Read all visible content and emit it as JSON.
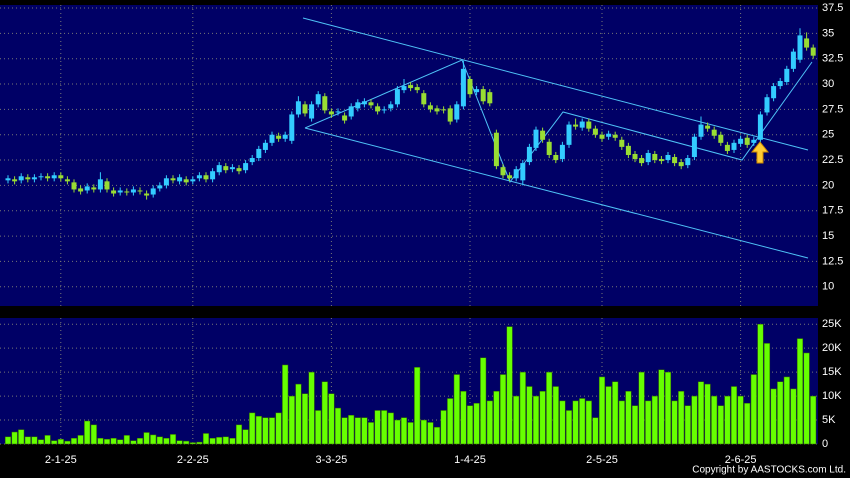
{
  "chart_data": [
    {
      "type": "candlestick",
      "categories": [
        null,
        null,
        null,
        null,
        null,
        null,
        null,
        null,
        "2-1-25",
        null,
        null,
        null,
        null,
        null,
        null,
        null,
        null,
        null,
        null,
        null,
        null,
        null,
        null,
        null,
        null,
        null,
        null,
        null,
        "2-2-25",
        null,
        null,
        null,
        null,
        null,
        null,
        null,
        null,
        null,
        null,
        null,
        null,
        null,
        null,
        null,
        null,
        null,
        null,
        null,
        null,
        "3-3-25",
        null,
        null,
        null,
        null,
        null,
        null,
        null,
        null,
        null,
        null,
        null,
        null,
        null,
        null,
        null,
        null,
        null,
        null,
        null,
        null,
        "1-4-25",
        null,
        null,
        null,
        null,
        null,
        null,
        null,
        null,
        null,
        null,
        null,
        null,
        null,
        null,
        null,
        null,
        null,
        null,
        null,
        "2-5-25",
        null,
        null,
        null,
        null,
        null,
        null,
        null,
        null,
        null,
        null,
        null,
        null,
        null,
        null,
        null,
        null,
        null,
        null,
        null,
        null,
        "2-6-25",
        null,
        null,
        null,
        null,
        null,
        null,
        null,
        null,
        null,
        null,
        null
      ],
      "open": [
        20.5,
        20.6,
        20.5,
        20.8,
        20.6,
        20.8,
        20.9,
        20.7,
        21.0,
        20.6,
        20.3,
        19.7,
        19.5,
        19.8,
        19.6,
        20.4,
        19.5,
        19.3,
        19.4,
        19.3,
        19.5,
        19.2,
        19.1,
        19.7,
        20.0,
        20.7,
        20.4,
        20.6,
        20.4,
        20.7,
        21.0,
        20.6,
        21.3,
        21.9,
        21.6,
        21.7,
        21.5,
        22.3,
        22.7,
        23.5,
        24.2,
        24.9,
        24.6,
        24.4,
        27.0,
        28.0,
        26.6,
        28.0,
        28.8,
        27.3,
        27.2,
        26.9,
        26.8,
        27.6,
        28.0,
        28.2,
        27.8,
        27.4,
        27.6,
        28.0,
        29.4,
        29.9,
        29.7,
        29.1,
        27.9,
        27.6,
        27.5,
        27.6,
        26.5,
        27.8,
        30.5,
        29.2,
        29.5,
        29.2,
        25.2,
        21.8,
        21.0,
        20.7,
        20.5,
        22.3,
        23.7,
        25.4,
        24.3,
        23.0,
        22.6,
        24.0,
        26.0,
        25.7,
        26.3,
        25.6,
        25.0,
        24.8,
        25.0,
        24.5,
        23.9,
        23.1,
        22.7,
        22.3,
        23.1,
        22.6,
        22.5,
        22.8,
        22.3,
        22.0,
        22.8,
        24.8,
        25.9,
        25.5,
        25.0,
        24.0,
        23.5,
        24.1,
        24.7,
        24.2,
        24.5,
        27.2,
        28.6,
        29.8,
        30.2,
        31.5,
        32.4,
        34.5,
        33.6
      ],
      "high": [
        21.0,
        20.9,
        21.2,
        21.1,
        21.1,
        21.2,
        21.2,
        21.3,
        21.3,
        20.9,
        20.6,
        20.0,
        20.2,
        20.1,
        21.3,
        20.7,
        19.8,
        19.8,
        19.7,
        19.9,
        19.8,
        19.5,
        20.0,
        20.3,
        21.0,
        21.0,
        21.1,
        20.9,
        20.9,
        21.3,
        21.3,
        21.7,
        22.3,
        22.2,
        22.1,
        22.0,
        22.5,
        23.0,
        23.9,
        24.5,
        25.3,
        25.2,
        25.3,
        27.3,
        28.8,
        28.3,
        28.3,
        29.3,
        29.1,
        27.6,
        27.6,
        27.2,
        28.1,
        28.5,
        28.6,
        28.5,
        28.1,
        27.8,
        28.3,
        29.8,
        30.5,
        30.2,
        30.0,
        29.4,
        28.2,
        27.9,
        27.8,
        27.9,
        28.3,
        32.3,
        30.8,
        29.8,
        29.8,
        29.5,
        25.5,
        22.1,
        21.3,
        21.9,
        22.5,
        24.1,
        25.8,
        25.7,
        24.6,
        23.3,
        24.3,
        26.3,
        26.6,
        26.6,
        26.6,
        25.9,
        25.3,
        25.4,
        25.3,
        24.8,
        24.2,
        23.4,
        23.0,
        23.5,
        23.4,
        22.9,
        23.3,
        23.1,
        22.6,
        23.0,
        25.1,
        26.8,
        26.2,
        25.8,
        25.3,
        24.3,
        24.5,
        24.9,
        25.0,
        24.8,
        27.3,
        29.0,
        30.1,
        30.6,
        31.8,
        33.5,
        35.5,
        35.1,
        33.9
      ],
      "low": [
        20.2,
        20.1,
        20.2,
        20.3,
        20.3,
        20.5,
        20.4,
        20.4,
        20.4,
        20.1,
        19.3,
        19.1,
        19.2,
        19.3,
        19.3,
        19.3,
        18.9,
        19.0,
        19.0,
        19.0,
        19.1,
        18.6,
        18.8,
        19.4,
        19.7,
        20.2,
        20.1,
        20.0,
        20.1,
        20.4,
        20.3,
        20.3,
        21.0,
        21.2,
        21.3,
        21.1,
        21.2,
        22.0,
        22.4,
        23.2,
        23.9,
        24.3,
        24.3,
        24.1,
        26.7,
        26.8,
        26.3,
        27.7,
        27.1,
        26.7,
        26.9,
        26.1,
        26.5,
        27.3,
        27.7,
        27.6,
        27.0,
        27.1,
        27.3,
        27.7,
        29.1,
        29.3,
        29.1,
        27.7,
        27.2,
        27.0,
        27.1,
        26.0,
        26.2,
        27.5,
        28.7,
        28.9,
        28.0,
        27.8,
        21.6,
        20.7,
        20.4,
        20.4,
        20.0,
        22.0,
        23.4,
        24.2,
        22.7,
        22.2,
        22.3,
        23.7,
        25.5,
        25.4,
        25.3,
        24.7,
        24.3,
        24.5,
        24.4,
        23.5,
        22.7,
        22.3,
        21.9,
        22.0,
        22.2,
        22.1,
        22.2,
        21.9,
        21.6,
        21.7,
        22.5,
        24.5,
        25.3,
        24.6,
        23.9,
        23.1,
        23.2,
        23.8,
        23.7,
        23.9,
        24.2,
        26.9,
        28.3,
        29.5,
        29.9,
        31.2,
        32.1,
        33.3,
        32.5
      ],
      "close": [
        20.7,
        20.4,
        20.9,
        20.6,
        20.8,
        20.9,
        20.7,
        21.0,
        20.7,
        20.4,
        19.6,
        19.4,
        19.9,
        19.6,
        20.6,
        19.6,
        19.2,
        19.5,
        19.3,
        19.6,
        19.4,
        19.0,
        19.7,
        20.0,
        20.7,
        20.5,
        20.8,
        20.3,
        20.6,
        21.0,
        20.6,
        21.4,
        22.0,
        21.5,
        21.8,
        21.4,
        22.2,
        22.7,
        23.6,
        24.2,
        25.0,
        24.6,
        25.0,
        27.0,
        28.3,
        27.1,
        28.0,
        29.0,
        27.4,
        27.0,
        27.3,
        26.4,
        27.8,
        28.2,
        28.3,
        27.9,
        27.3,
        27.5,
        28.0,
        29.5,
        29.8,
        29.6,
        29.4,
        28.0,
        27.5,
        27.3,
        27.4,
        26.3,
        28.0,
        31.5,
        29.0,
        29.5,
        28.3,
        28.1,
        21.9,
        21.0,
        20.7,
        21.6,
        22.2,
        23.8,
        25.5,
        24.5,
        23.0,
        22.5,
        24.0,
        26.0,
        25.8,
        26.3,
        25.6,
        25.0,
        24.6,
        25.1,
        24.7,
        23.8,
        23.0,
        22.6,
        22.2,
        23.2,
        22.5,
        22.4,
        23.0,
        22.2,
        21.9,
        22.7,
        24.8,
        26.0,
        25.6,
        24.9,
        24.2,
        23.4,
        24.2,
        24.6,
        24.0,
        24.5,
        27.0,
        28.7,
        29.8,
        30.3,
        31.5,
        33.2,
        34.8,
        33.6,
        32.8
      ],
      "up_color": "#33ccff",
      "down_color": "#99dd33",
      "ylim": [
        8.1,
        37.8
      ],
      "yticks": [
        10,
        12.5,
        15,
        17.5,
        20,
        22.5,
        25,
        27.5,
        30,
        32.5,
        35,
        37.5
      ],
      "grid": true
    },
    {
      "type": "bar",
      "values": [
        1500,
        2500,
        3000,
        1500,
        1500,
        900,
        1800,
        700,
        1000,
        600,
        1200,
        1800,
        4800,
        4000,
        1200,
        1000,
        1200,
        900,
        1800,
        700,
        1200,
        2400,
        1900,
        1500,
        1200,
        2000,
        700,
        600,
        300,
        400,
        2200,
        1200,
        1400,
        1500,
        1200,
        4000,
        3000,
        6500,
        5800,
        5500,
        5500,
        6500,
        16500,
        10000,
        12500,
        10500,
        15000,
        7000,
        13000,
        10500,
        7500,
        5500,
        6000,
        5500,
        5500,
        4500,
        7000,
        7000,
        6500,
        5000,
        5500,
        4500,
        16000,
        5000,
        4500,
        3500,
        7000,
        9500,
        14500,
        11000,
        8000,
        8500,
        18000,
        9000,
        11000,
        14500,
        24500,
        10000,
        15000,
        12000,
        10000,
        11000,
        15000,
        12000,
        9000,
        7000,
        9000,
        9500,
        9000,
        5500,
        14000,
        12000,
        13000,
        9000,
        11000,
        8000,
        15000,
        9000,
        10000,
        15500,
        15000,
        9000,
        11000,
        8000,
        10000,
        13000,
        12500,
        10000,
        8000,
        10000,
        12000,
        10000,
        8500,
        14500,
        25000,
        21000,
        11500,
        13000,
        14000,
        11500,
        22000,
        19000,
        10000
      ],
      "color": "#66ff00",
      "ylim": [
        0,
        26300
      ],
      "yticks": [
        0,
        {
          "value": 5000,
          "label": "5K"
        },
        {
          "value": 10000,
          "label": "10K"
        },
        {
          "value": 15000,
          "label": "15K"
        },
        {
          "value": 20000,
          "label": "20K"
        },
        {
          "value": 25000,
          "label": "25K"
        }
      ],
      "grid": true,
      "annotation": "Copyright by AASTOCKS.com Ltd."
    }
  ]
}
